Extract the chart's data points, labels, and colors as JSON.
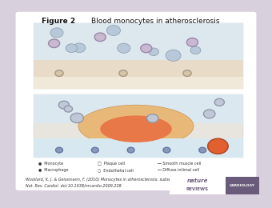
{
  "title_bold": "Figure 2",
  "title_normal": " Blood monocytes in atherosclerosis",
  "citation_line1": "Woollard, K. J. & Geissmann, F. (2010) Monocytes in atherosclerosis: subsets and functions",
  "citation_line2": "Nat. Rev. Cardiol. doi:10.1038/nrcardio.2009.228",
  "bg_color": "#d8d0dc",
  "slide_bg": "#ffffff",
  "nature_text": "nature\nREVIEWS",
  "cardiology_text": "CARDIOLOGY",
  "nature_color": "#6b5b7b",
  "cardiology_bg": "#6b5b7b",
  "cardiology_fg": "#ffffff"
}
